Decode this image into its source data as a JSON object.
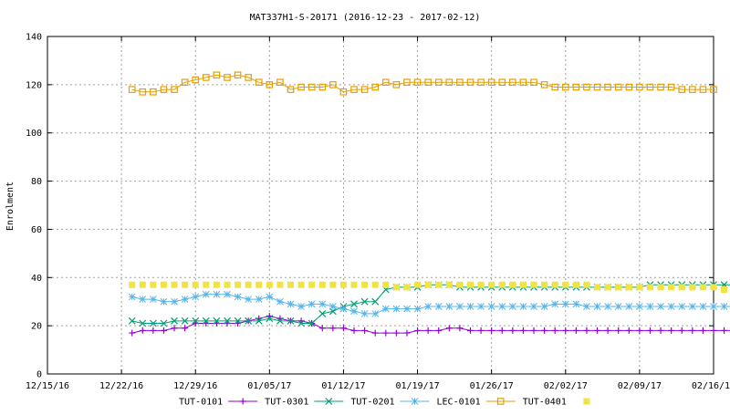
{
  "chart_data": {
    "type": "line",
    "title": "MAT337H1-S-20171 (2016-12-23 - 2017-02-12)",
    "xlabel": "",
    "ylabel": "Enrolment",
    "xlim": [
      "2016-12-15",
      "2017-02-16"
    ],
    "ylim": [
      0,
      140
    ],
    "yticks": [
      0,
      20,
      40,
      60,
      80,
      100,
      120,
      140
    ],
    "xticks": [
      {
        "date": "2016-12-15",
        "label": "12/15/16"
      },
      {
        "date": "2016-12-22",
        "label": "12/22/16"
      },
      {
        "date": "2016-12-29",
        "label": "12/29/16"
      },
      {
        "date": "2017-01-05",
        "label": "01/05/17"
      },
      {
        "date": "2017-01-12",
        "label": "01/12/17"
      },
      {
        "date": "2017-01-19",
        "label": "01/19/17"
      },
      {
        "date": "2017-01-26",
        "label": "01/26/17"
      },
      {
        "date": "2017-02-02",
        "label": "02/02/17"
      },
      {
        "date": "2017-02-09",
        "label": "02/09/17"
      },
      {
        "date": "2017-02-16",
        "label": "02/16/17"
      }
    ],
    "grid": true,
    "legend_position": "bottom",
    "start_date": "2016-12-23",
    "series": [
      {
        "name": "TUT-0101",
        "color": "#9400d3",
        "marker": "plus",
        "values": [
          17,
          18,
          18,
          18,
          19,
          19,
          21,
          21,
          21,
          21,
          21,
          22,
          23,
          24,
          23,
          22,
          22,
          21,
          19,
          19,
          19,
          18,
          18,
          17,
          17,
          17,
          17,
          18,
          18,
          18,
          19,
          19,
          18,
          18,
          18,
          18,
          18,
          18,
          18,
          18,
          18,
          18,
          18,
          18,
          18,
          18,
          18,
          18,
          18,
          18,
          18,
          18,
          18,
          18,
          18,
          18,
          18,
          18,
          18,
          18,
          18,
          18
        ]
      },
      {
        "name": "TUT-0301",
        "color": "#009e73",
        "marker": "cross",
        "values": [
          22,
          21,
          21,
          21,
          22,
          22,
          22,
          22,
          22,
          22,
          22,
          22,
          22,
          23,
          22,
          22,
          21,
          21,
          25,
          26,
          28,
          29,
          30,
          30,
          35,
          36,
          36,
          36,
          37,
          37,
          37,
          36,
          36,
          36,
          36,
          36,
          36,
          36,
          36,
          36,
          36,
          36,
          36,
          36,
          36,
          36,
          36,
          36,
          36,
          37,
          37,
          37,
          37,
          37,
          37,
          37,
          37,
          37,
          37,
          37,
          37,
          37,
          37
        ]
      },
      {
        "name": "TUT-0201",
        "color": "#56b4e9",
        "marker": "star",
        "values": [
          32,
          31,
          31,
          30,
          30,
          31,
          32,
          33,
          33,
          33,
          32,
          31,
          31,
          32,
          30,
          29,
          28,
          29,
          29,
          28,
          27,
          26,
          25,
          25,
          27,
          27,
          27,
          27,
          28,
          28,
          28,
          28,
          28,
          28,
          28,
          28,
          28,
          28,
          28,
          28,
          29,
          29,
          29,
          28,
          28,
          28,
          28,
          28,
          28,
          28,
          28,
          28,
          28,
          28,
          28,
          28,
          28,
          28,
          28,
          28,
          28,
          28
        ]
      },
      {
        "name": "LEC-0101",
        "color": "#e69f00",
        "marker": "square",
        "values": [
          118,
          117,
          117,
          118,
          118,
          121,
          122,
          123,
          124,
          123,
          124,
          123,
          121,
          120,
          121,
          118,
          119,
          119,
          119,
          120,
          117,
          118,
          118,
          119,
          121,
          120,
          121,
          121,
          121,
          121,
          121,
          121,
          121,
          121,
          121,
          121,
          121,
          121,
          121,
          120,
          119,
          119,
          119,
          119,
          119,
          119,
          119,
          119,
          119,
          119,
          119,
          119,
          118,
          118,
          118,
          118
        ]
      },
      {
        "name": "TUT-0401",
        "color": "#f0e442",
        "marker": "filled-square",
        "values": [
          37,
          37,
          37,
          37,
          37,
          37,
          37,
          37,
          37,
          37,
          37,
          37,
          37,
          37,
          37,
          37,
          37,
          37,
          37,
          37,
          37,
          37,
          37,
          37,
          37,
          36,
          36,
          37,
          37,
          37,
          37,
          37,
          37,
          37,
          37,
          37,
          37,
          37,
          37,
          37,
          37,
          37,
          37,
          37,
          36,
          36,
          36,
          36,
          36,
          36,
          36,
          36,
          36,
          36,
          36,
          36,
          35,
          35,
          35,
          35,
          35
        ]
      }
    ]
  }
}
